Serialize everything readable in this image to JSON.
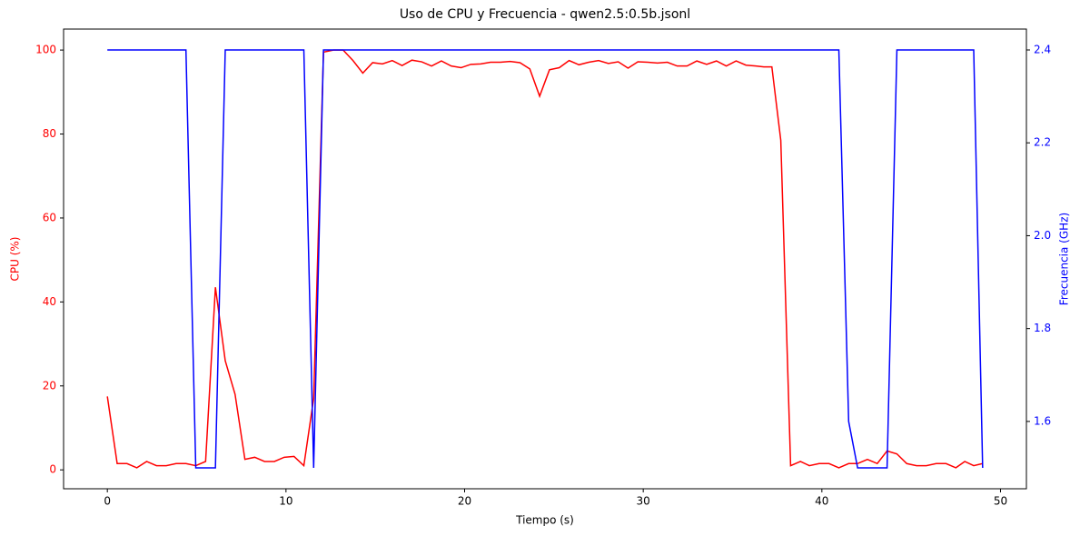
{
  "chart_data": {
    "type": "line",
    "title": "Uso de CPU y Frecuencia - qwen2.5:0.5b.jsonl",
    "x_label": "Tiempo (s)",
    "y_label": "CPU (%)",
    "y2_label": "Frecuencia (GHz)",
    "x": [
      0,
      0.55,
      1.1,
      1.65,
      2.2,
      2.75,
      3.3,
      3.85,
      4.4,
      4.95,
      5.5,
      6.05,
      6.6,
      7.15,
      7.7,
      8.25,
      8.8,
      9.35,
      9.9,
      10.45,
      11,
      11.55,
      12.1,
      12.65,
      13.2,
      13.75,
      14.3,
      14.85,
      15.4,
      15.95,
      16.5,
      17.05,
      17.6,
      18.15,
      18.7,
      19.25,
      19.8,
      20.35,
      20.9,
      21.45,
      22,
      22.55,
      23.1,
      23.65,
      24.2,
      24.75,
      25.3,
      25.85,
      26.4,
      26.95,
      27.5,
      28.05,
      28.6,
      29.15,
      29.7,
      30.25,
      30.8,
      31.35,
      31.9,
      32.45,
      33,
      33.55,
      34.1,
      34.65,
      35.2,
      35.75,
      36.3,
      36.75,
      37.2,
      37.7,
      38.25,
      38.8,
      39.3,
      39.85,
      40.4,
      40.95,
      41.5,
      42,
      42.55,
      43.1,
      43.65,
      44.2,
      44.75,
      45.3,
      45.85,
      46.4,
      46.95,
      47.5,
      48,
      48.5,
      49
    ],
    "series": [
      {
        "name": "CPU (%)",
        "color": "#ff0000",
        "axis": "y",
        "values": [
          17.5,
          1.5,
          1.5,
          0.5,
          2,
          1,
          1,
          1.5,
          1.5,
          1,
          2,
          43.5,
          26,
          18,
          2.5,
          3,
          2,
          2,
          3,
          3.2,
          1,
          17,
          99.5,
          100,
          100,
          97.5,
          94.5,
          97,
          96.7,
          97.5,
          96.3,
          97.6,
          97.2,
          96.2,
          97.4,
          96.2,
          95.8,
          96.6,
          96.7,
          97.1,
          97.1,
          97.3,
          97,
          95.5,
          89,
          95.3,
          95.8,
          97.5,
          96.5,
          97.1,
          97.5,
          96.8,
          97.2,
          95.7,
          97.2,
          97.1,
          96.9,
          97.1,
          96.2,
          96.2,
          97.4,
          96.6,
          97.4,
          96.2,
          97.4,
          96.4,
          96.2,
          96,
          96,
          78.5,
          1,
          2,
          1,
          1.5,
          1.5,
          0.5,
          1.5,
          1.5,
          2.5,
          1.5,
          4.5,
          3.8,
          1.5,
          1,
          1,
          1.5,
          1.5,
          0.5,
          2,
          1,
          1.5
        ]
      },
      {
        "name": "Frecuencia (GHz)",
        "color": "#0000ff",
        "axis": "y2",
        "values": [
          2.4,
          2.4,
          2.4,
          2.4,
          2.4,
          2.4,
          2.4,
          2.4,
          2.4,
          1.5,
          1.5,
          1.5,
          2.4,
          2.4,
          2.4,
          2.4,
          2.4,
          2.4,
          2.4,
          2.4,
          2.4,
          1.5,
          2.4,
          2.4,
          2.4,
          2.4,
          2.4,
          2.4,
          2.4,
          2.4,
          2.4,
          2.4,
          2.4,
          2.4,
          2.4,
          2.4,
          2.4,
          2.4,
          2.4,
          2.4,
          2.4,
          2.4,
          2.4,
          2.4,
          2.4,
          2.4,
          2.4,
          2.4,
          2.4,
          2.4,
          2.4,
          2.4,
          2.4,
          2.4,
          2.4,
          2.4,
          2.4,
          2.4,
          2.4,
          2.4,
          2.4,
          2.4,
          2.4,
          2.4,
          2.4,
          2.4,
          2.4,
          2.4,
          2.4,
          2.4,
          2.4,
          2.4,
          2.4,
          2.4,
          2.4,
          2.4,
          1.6,
          1.5,
          1.5,
          1.5,
          1.5,
          2.4,
          2.4,
          2.4,
          2.4,
          2.4,
          2.4,
          2.4,
          2.4,
          2.4,
          1.5
        ]
      }
    ],
    "xlim": [
      -2.45,
      51.45
    ],
    "xticks": [
      0,
      10,
      20,
      30,
      40,
      50
    ],
    "ylim": [
      -4.5,
      105
    ],
    "yticks": [
      0,
      20,
      40,
      60,
      80,
      100
    ],
    "y2lim": [
      1.455,
      2.445
    ],
    "y2ticks": [
      1.6,
      1.8,
      {
        "value": 2,
        "label": "2.0"
      },
      2.2,
      2.4
    ],
    "y_color": "#ff0000",
    "y2_color": "#0000ff"
  }
}
